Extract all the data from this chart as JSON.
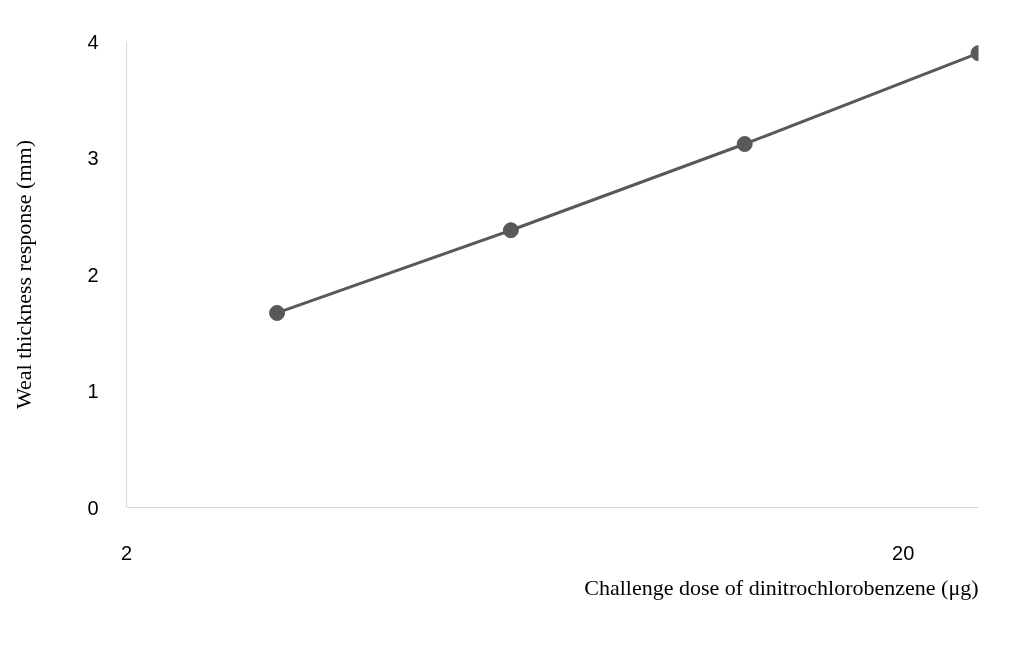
{
  "chart_data": {
    "type": "line",
    "xlabel": "Challenge dose of dinitrochlorobenzene (μg)",
    "ylabel": "Weal thickness response (mm)",
    "x": [
      3.125,
      6.25,
      12.5,
      25
    ],
    "series": [
      {
        "color": "#595959",
        "values": [
          1.67,
          2.38,
          3.12,
          3.9
        ]
      }
    ],
    "log": "x",
    "xlim": [
      2,
      25
    ],
    "xticks": [
      2,
      20
    ],
    "ylim": [
      0,
      4
    ],
    "yticks": [
      0,
      1,
      2,
      3,
      4
    ],
    "grid": false,
    "marker": "circle",
    "line_style": "solid"
  }
}
